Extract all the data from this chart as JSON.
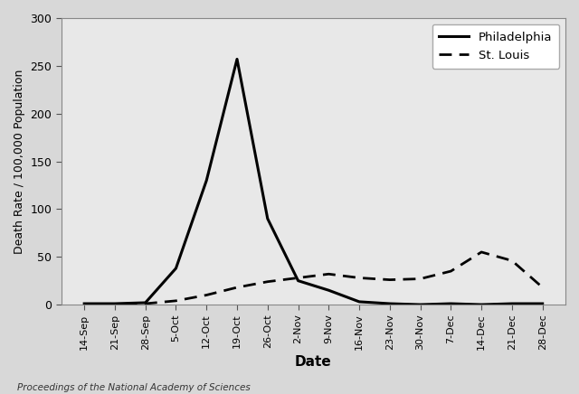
{
  "title": "",
  "xlabel": "Date",
  "ylabel": "Death Rate / 100,000 Population",
  "source_text": "Proceedings of the National Academy of Sciences",
  "ylim": [
    0,
    300
  ],
  "yticks": [
    0,
    50,
    100,
    150,
    200,
    250,
    300
  ],
  "x_labels": [
    "14-Sep",
    "21-Sep",
    "28-Sep",
    "5-Oct",
    "12-Oct",
    "19-Oct",
    "26-Oct",
    "2-Nov",
    "9-Nov",
    "16-Nov",
    "23-Nov",
    "30-Nov",
    "7-Dec",
    "14-Dec",
    "21-Dec",
    "28-Dec"
  ],
  "philadelphia": [
    1,
    1,
    2,
    38,
    130,
    257,
    90,
    25,
    15,
    3,
    1,
    0,
    1,
    0,
    1,
    1
  ],
  "st_louis": [
    0,
    0,
    1,
    4,
    10,
    18,
    24,
    28,
    32,
    28,
    26,
    27,
    35,
    55,
    46,
    18
  ],
  "philly_color": "#000000",
  "stlouis_color": "#000000",
  "background_color": "#d8d8d8",
  "plot_bg_color": "#e8e8e8",
  "legend_labels": [
    "Philadelphia",
    "St. Louis"
  ],
  "fig_width": 6.4,
  "fig_height": 4.36,
  "dpi": 100
}
